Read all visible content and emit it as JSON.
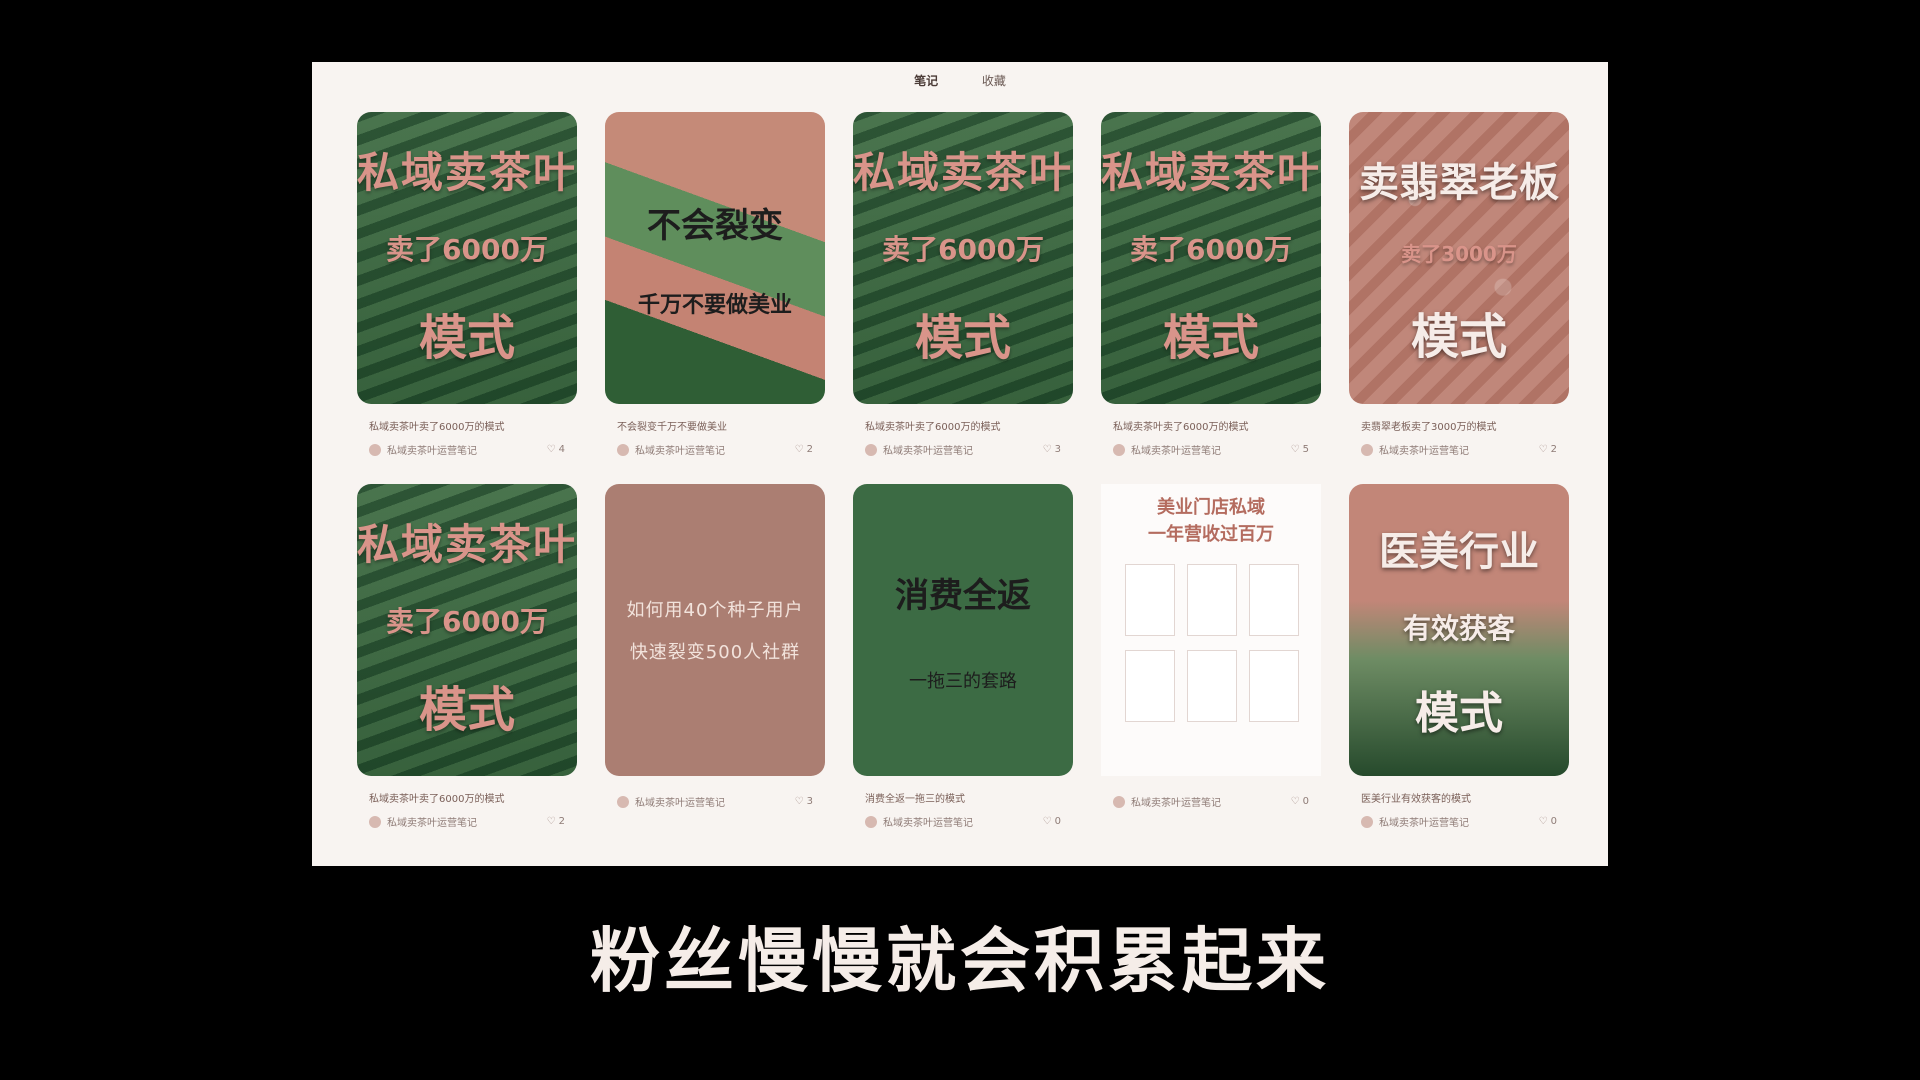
{
  "tabs": {
    "notes": "笔记",
    "collect": "收藏"
  },
  "cards": [
    {
      "type": "tea",
      "lines": [
        "私域卖茶叶",
        "卖了6000万",
        "模式"
      ],
      "title": "私域卖茶叶卖了6000万的模式",
      "author": "私域卖茶叶运营笔记",
      "likes": "4"
    },
    {
      "type": "torn",
      "lines": [
        "不会裂变",
        "千万不要做美业"
      ],
      "title": "不会裂变千万不要做美业",
      "author": "私域卖茶叶运营笔记",
      "likes": "2"
    },
    {
      "type": "tea",
      "lines": [
        "私域卖茶叶",
        "卖了6000万",
        "模式"
      ],
      "title": "私域卖茶叶卖了6000万的模式",
      "author": "私域卖茶叶运营笔记",
      "likes": "3"
    },
    {
      "type": "tea",
      "lines": [
        "私域卖茶叶",
        "卖了6000万",
        "模式"
      ],
      "title": "私域卖茶叶卖了6000万的模式",
      "author": "私域卖茶叶运营笔记",
      "likes": "5"
    },
    {
      "type": "jade",
      "lines": [
        "卖翡翠老板",
        "卖了3000万",
        "模式"
      ],
      "title": "卖翡翠老板卖了3000万的模式",
      "author": "私域卖茶叶运营笔记",
      "likes": "2"
    },
    {
      "type": "tea",
      "lines": [
        "私域卖茶叶",
        "卖了6000万",
        "模式"
      ],
      "title": "私域卖茶叶卖了6000万的模式",
      "author": "私域卖茶叶运营笔记",
      "likes": "2"
    },
    {
      "type": "pink",
      "lines": [
        "如何用40个种子用户",
        "快速裂变500人社群"
      ],
      "title": "",
      "author": "私域卖茶叶运营笔记",
      "likes": "3"
    },
    {
      "type": "green",
      "lines": [
        "消费全返",
        "一拖三的套路"
      ],
      "title": "消费全返一拖三的模式",
      "author": "私域卖茶叶运营笔记",
      "likes": "0"
    },
    {
      "type": "white",
      "lines": [
        "美业门店私域",
        "一年营收过百万"
      ],
      "title": "",
      "author": "私域卖茶叶运营笔记",
      "likes": "0"
    },
    {
      "type": "med",
      "lines": [
        "医美行业",
        "有效获客",
        "模式"
      ],
      "title": "医美行业有效获客的模式",
      "author": "私域卖茶叶运营笔记",
      "likes": "0"
    }
  ],
  "caption": "粉丝慢慢就会积累起来"
}
